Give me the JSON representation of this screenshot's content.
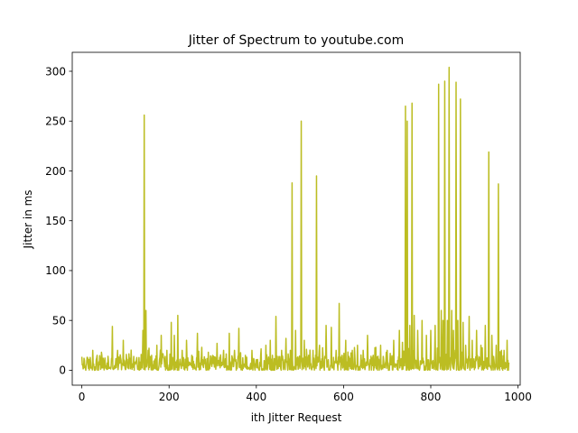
{
  "chart_data": {
    "type": "line",
    "title": "Jitter of Spectrum to youtube.com",
    "xlabel": "ith Jitter Request",
    "ylabel": "Jitter in ms",
    "xlim": [
      -22,
      1005
    ],
    "ylim": [
      -15,
      319
    ],
    "xticks": [
      0,
      200,
      400,
      600,
      800,
      1000
    ],
    "yticks": [
      0,
      50,
      100,
      150,
      200,
      250,
      300
    ],
    "grid": false,
    "series": [
      {
        "color": "#bcbd22",
        "n_points": 980,
        "baseline_range": [
          0,
          15
        ],
        "spikes": [
          {
            "x": 5,
            "y": 12
          },
          {
            "x": 12,
            "y": 13
          },
          {
            "x": 25,
            "y": 20
          },
          {
            "x": 35,
            "y": 15
          },
          {
            "x": 45,
            "y": 18
          },
          {
            "x": 60,
            "y": 14
          },
          {
            "x": 70,
            "y": 44
          },
          {
            "x": 82,
            "y": 20
          },
          {
            "x": 95,
            "y": 30
          },
          {
            "x": 110,
            "y": 12
          },
          {
            "x": 125,
            "y": 10
          },
          {
            "x": 140,
            "y": 40
          },
          {
            "x": 143,
            "y": 256
          },
          {
            "x": 147,
            "y": 60
          },
          {
            "x": 152,
            "y": 20
          },
          {
            "x": 160,
            "y": 15
          },
          {
            "x": 172,
            "y": 25
          },
          {
            "x": 182,
            "y": 35
          },
          {
            "x": 195,
            "y": 20
          },
          {
            "x": 205,
            "y": 48
          },
          {
            "x": 212,
            "y": 35
          },
          {
            "x": 220,
            "y": 55
          },
          {
            "x": 230,
            "y": 20
          },
          {
            "x": 240,
            "y": 30
          },
          {
            "x": 252,
            "y": 15
          },
          {
            "x": 265,
            "y": 37
          },
          {
            "x": 275,
            "y": 23
          },
          {
            "x": 290,
            "y": 18
          },
          {
            "x": 310,
            "y": 27
          },
          {
            "x": 325,
            "y": 20
          },
          {
            "x": 338,
            "y": 37
          },
          {
            "x": 350,
            "y": 20
          },
          {
            "x": 360,
            "y": 42
          },
          {
            "x": 375,
            "y": 15
          },
          {
            "x": 390,
            "y": 20
          },
          {
            "x": 410,
            "y": 15
          },
          {
            "x": 422,
            "y": 25
          },
          {
            "x": 432,
            "y": 30
          },
          {
            "x": 445,
            "y": 54
          },
          {
            "x": 458,
            "y": 20
          },
          {
            "x": 468,
            "y": 32
          },
          {
            "x": 478,
            "y": 20
          },
          {
            "x": 482,
            "y": 188
          },
          {
            "x": 490,
            "y": 40
          },
          {
            "x": 503,
            "y": 250
          },
          {
            "x": 510,
            "y": 30
          },
          {
            "x": 520,
            "y": 15
          },
          {
            "x": 530,
            "y": 20
          },
          {
            "x": 538,
            "y": 195
          },
          {
            "x": 545,
            "y": 25
          },
          {
            "x": 560,
            "y": 45
          },
          {
            "x": 572,
            "y": 43
          },
          {
            "x": 583,
            "y": 20
          },
          {
            "x": 590,
            "y": 67
          },
          {
            "x": 605,
            "y": 30
          },
          {
            "x": 620,
            "y": 20
          },
          {
            "x": 632,
            "y": 25
          },
          {
            "x": 645,
            "y": 20
          },
          {
            "x": 655,
            "y": 35
          },
          {
            "x": 668,
            "y": 15
          },
          {
            "x": 685,
            "y": 25
          },
          {
            "x": 700,
            "y": 20
          },
          {
            "x": 715,
            "y": 30
          },
          {
            "x": 728,
            "y": 40
          },
          {
            "x": 735,
            "y": 28
          },
          {
            "x": 742,
            "y": 265
          },
          {
            "x": 746,
            "y": 250
          },
          {
            "x": 752,
            "y": 45
          },
          {
            "x": 757,
            "y": 268
          },
          {
            "x": 762,
            "y": 55
          },
          {
            "x": 770,
            "y": 40
          },
          {
            "x": 780,
            "y": 50
          },
          {
            "x": 790,
            "y": 35
          },
          {
            "x": 800,
            "y": 40
          },
          {
            "x": 810,
            "y": 45
          },
          {
            "x": 818,
            "y": 287
          },
          {
            "x": 824,
            "y": 60
          },
          {
            "x": 828,
            "y": 50
          },
          {
            "x": 832,
            "y": 290
          },
          {
            "x": 838,
            "y": 50
          },
          {
            "x": 842,
            "y": 304
          },
          {
            "x": 848,
            "y": 60
          },
          {
            "x": 852,
            "y": 40
          },
          {
            "x": 858,
            "y": 289
          },
          {
            "x": 862,
            "y": 50
          },
          {
            "x": 868,
            "y": 272
          },
          {
            "x": 874,
            "y": 48
          },
          {
            "x": 880,
            "y": 25
          },
          {
            "x": 888,
            "y": 54
          },
          {
            "x": 895,
            "y": 30
          },
          {
            "x": 905,
            "y": 40
          },
          {
            "x": 915,
            "y": 25
          },
          {
            "x": 925,
            "y": 45
          },
          {
            "x": 933,
            "y": 219
          },
          {
            "x": 940,
            "y": 35
          },
          {
            "x": 950,
            "y": 25
          },
          {
            "x": 955,
            "y": 187
          },
          {
            "x": 962,
            "y": 20
          },
          {
            "x": 968,
            "y": 20
          },
          {
            "x": 975,
            "y": 30
          }
        ]
      }
    ]
  }
}
